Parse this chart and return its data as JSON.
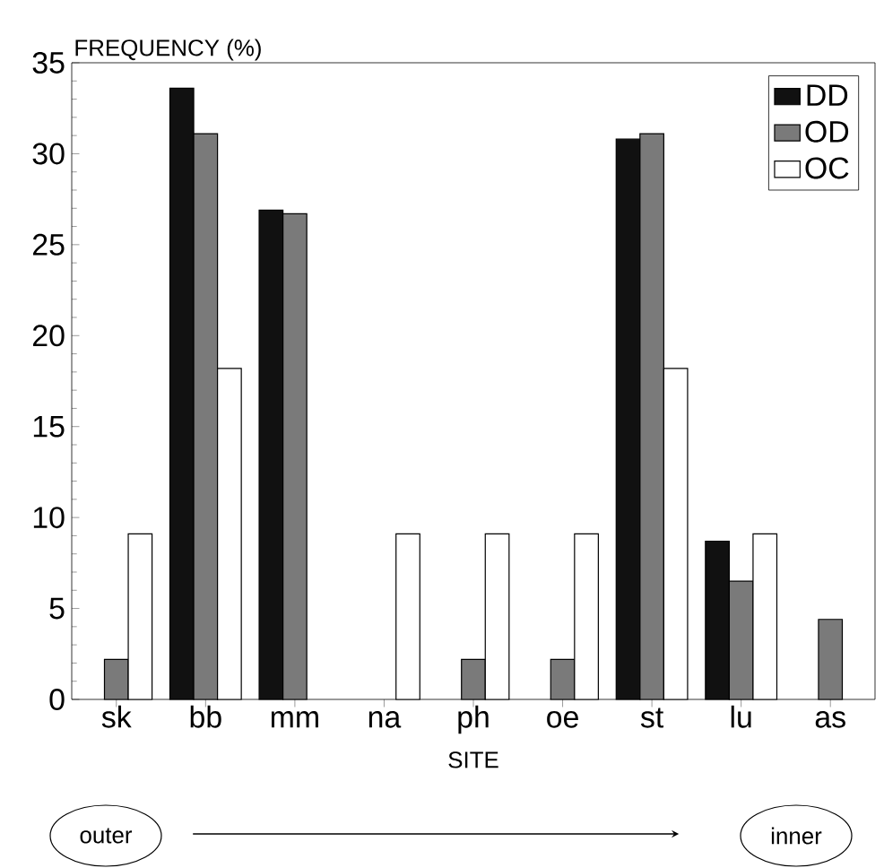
{
  "chart_data": {
    "type": "bar",
    "ylabel": "FREQUENCY (%)",
    "xlabel": "SITE",
    "categories": [
      "sk",
      "bb",
      "mm",
      "na",
      "ph",
      "oe",
      "st",
      "lu",
      "as"
    ],
    "series": [
      {
        "name": "DD",
        "color": "#111111",
        "values": [
          null,
          33.6,
          26.9,
          null,
          null,
          null,
          30.8,
          8.7,
          null
        ]
      },
      {
        "name": "OD",
        "color": "#7a7a7a",
        "values": [
          2.2,
          31.1,
          26.7,
          null,
          2.2,
          2.2,
          31.1,
          6.5,
          4.4
        ]
      },
      {
        "name": "OC",
        "color": "#ffffff",
        "values": [
          9.1,
          18.2,
          null,
          9.1,
          9.1,
          9.1,
          18.2,
          9.1,
          null
        ]
      }
    ],
    "ylim": [
      0,
      35
    ],
    "yticks": [
      0,
      5,
      10,
      15,
      20,
      25,
      30,
      35
    ],
    "legend": "top right",
    "grid": false,
    "annotations": [
      "outer",
      "inner"
    ]
  }
}
